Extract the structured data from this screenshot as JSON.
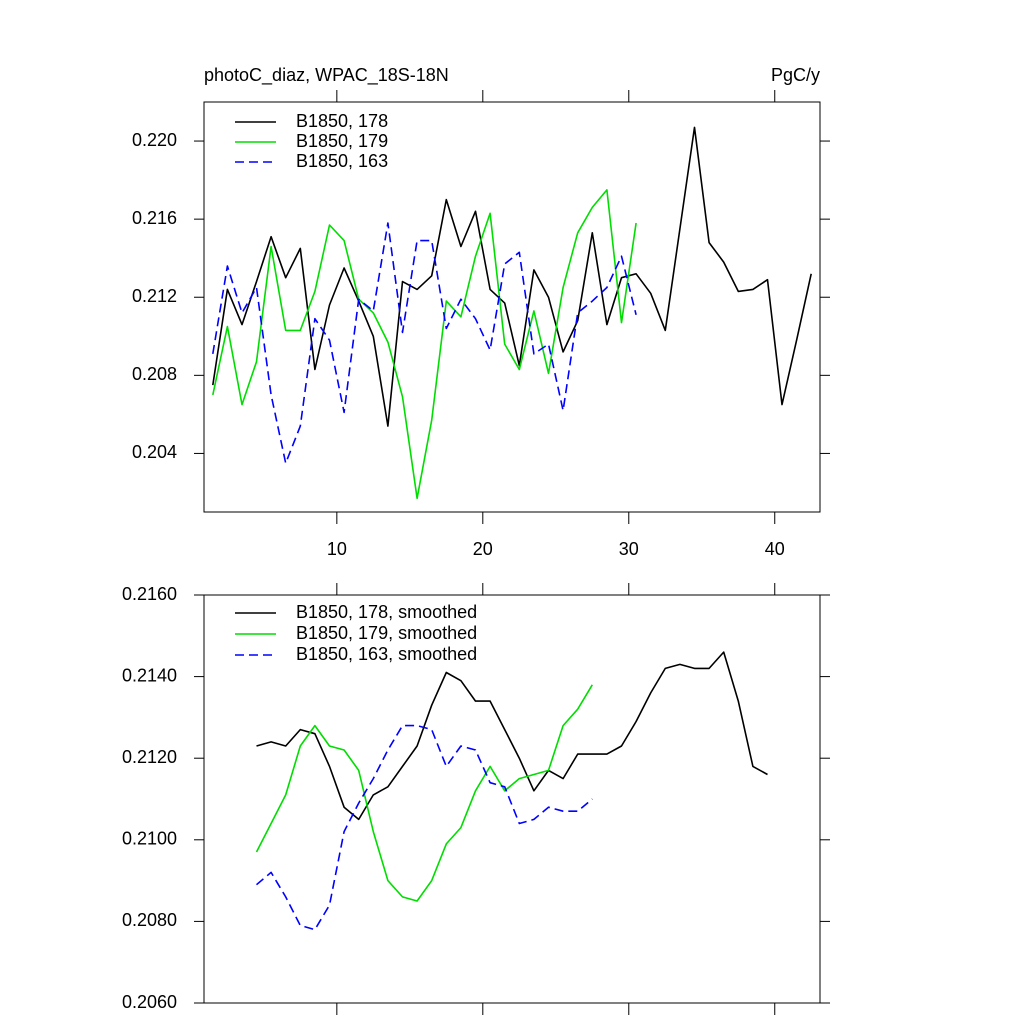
{
  "chart_data": [
    {
      "type": "line",
      "title": "photoC_diaz, WPAC_18S-18N",
      "units": "PgC/y",
      "x": [
        1.5,
        2.5,
        3.5,
        4.5,
        5.5,
        6.5,
        7.5,
        8.5,
        9.5,
        10.5,
        11.5,
        12.5,
        13.5,
        14.5,
        15.5,
        16.5,
        17.5,
        18.5,
        19.5,
        20.5,
        21.5,
        22.5,
        23.5,
        24.5,
        25.5,
        26.5,
        27.5,
        28.5,
        29.5,
        30.5,
        31.5,
        32.5,
        33.5,
        34.5,
        35.5,
        36.5,
        37.5,
        38.5,
        39.5,
        40.5,
        41.5,
        42.5
      ],
      "xlim": [
        0.9,
        43.1
      ],
      "xticks": [
        10,
        20,
        30,
        40
      ],
      "xtick_labels": true,
      "ylim": [
        0.201,
        0.222
      ],
      "yticks": [
        {
          "value": 0.204,
          "label": "0.204"
        },
        {
          "value": 0.208,
          "label": "0.208"
        },
        {
          "value": 0.212,
          "label": "0.212"
        },
        {
          "value": 0.216,
          "label": "0.216"
        },
        {
          "value": 0.22,
          "label": "0.220"
        }
      ],
      "series": [
        {
          "name": "B1850, 178",
          "color": "#000000",
          "dash": false,
          "values": [
            0.2075,
            0.2124,
            0.2106,
            0.2128,
            0.2151,
            0.213,
            0.2145,
            0.2083,
            0.2116,
            0.2135,
            0.2118,
            0.21,
            0.2054,
            0.2128,
            0.2124,
            0.2131,
            0.217,
            0.2146,
            0.2164,
            0.2124,
            0.2117,
            0.2085,
            0.2134,
            0.212,
            0.2092,
            0.2108,
            0.2153,
            0.2106,
            0.213,
            0.2132,
            0.2122,
            0.2103,
            0.2155,
            0.2207,
            0.2148,
            0.2138,
            0.2123,
            0.2124,
            0.2129,
            0.2065,
            0.2098,
            0.2132
          ]
        },
        {
          "name": "B1850, 179",
          "color": "#00dd00",
          "dash": false,
          "values": [
            0.207,
            0.2105,
            0.2065,
            0.2087,
            0.2146,
            0.2103,
            0.2103,
            0.2123,
            0.2157,
            0.2149,
            0.2119,
            0.2112,
            0.2097,
            0.2069,
            0.2017,
            0.2057,
            0.2118,
            0.211,
            0.2141,
            0.2163,
            0.2096,
            0.2083,
            0.2113,
            0.2081,
            0.2125,
            0.2153,
            0.2166,
            0.2175,
            0.2107,
            0.2158,
            null,
            null,
            null,
            null,
            null,
            null,
            null,
            null,
            null,
            null,
            null,
            null
          ]
        },
        {
          "name": "B1850, 163",
          "color": "#0000ff",
          "dash": true,
          "values": [
            0.2091,
            0.2136,
            0.2112,
            0.2125,
            0.207,
            0.2035,
            0.2054,
            0.2109,
            0.2098,
            0.2061,
            0.2119,
            0.2113,
            0.2158,
            0.2102,
            0.2149,
            0.2149,
            0.2104,
            0.2119,
            0.2109,
            0.2093,
            0.2137,
            0.2143,
            0.2091,
            0.2096,
            0.2062,
            0.2112,
            0.2118,
            0.2125,
            0.2141,
            0.2111,
            null,
            null,
            null,
            null,
            null,
            null,
            null,
            null,
            null,
            null,
            null,
            null
          ]
        }
      ]
    },
    {
      "type": "line",
      "x": [
        4.5,
        5.5,
        6.5,
        7.5,
        8.5,
        9.5,
        10.5,
        11.5,
        12.5,
        13.5,
        14.5,
        15.5,
        16.5,
        17.5,
        18.5,
        19.5,
        20.5,
        21.5,
        22.5,
        23.5,
        24.5,
        25.5,
        26.5,
        27.5,
        28.5,
        29.5,
        30.5,
        31.5,
        32.5,
        33.5,
        34.5,
        35.5,
        36.5,
        37.5,
        38.5,
        39.5
      ],
      "xlim": [
        0.9,
        43.1
      ],
      "xticks": [
        10,
        20,
        30,
        40
      ],
      "xtick_labels": false,
      "ylim": [
        0.206,
        0.216
      ],
      "yticks": [
        {
          "value": 0.206,
          "label": "0.2060"
        },
        {
          "value": 0.208,
          "label": "0.2080"
        },
        {
          "value": 0.21,
          "label": "0.2100"
        },
        {
          "value": 0.212,
          "label": "0.2120"
        },
        {
          "value": 0.214,
          "label": "0.2140"
        },
        {
          "value": 0.216,
          "label": "0.2160"
        }
      ],
      "series": [
        {
          "name": "B1850, 178, smoothed",
          "color": "#000000",
          "dash": false,
          "values": [
            0.2123,
            0.2124,
            0.2123,
            0.2127,
            0.2126,
            0.2118,
            0.2108,
            0.2105,
            0.2111,
            0.2113,
            0.2118,
            0.2123,
            0.2133,
            0.2141,
            0.2139,
            0.2134,
            0.2134,
            0.2127,
            0.212,
            0.2112,
            0.2117,
            0.2115,
            0.2121,
            0.2121,
            0.2121,
            0.2123,
            0.2129,
            0.2136,
            0.2142,
            0.2143,
            0.2142,
            0.2142,
            0.2146,
            0.2134,
            0.2118,
            0.2116
          ]
        },
        {
          "name": "B1850, 179, smoothed",
          "color": "#00dd00",
          "dash": false,
          "values": [
            0.2097,
            0.2104,
            0.2111,
            0.2123,
            0.2128,
            0.2123,
            0.2122,
            0.2117,
            0.2102,
            0.209,
            0.2086,
            0.2085,
            0.209,
            0.2099,
            0.2103,
            0.2112,
            0.2118,
            0.2112,
            0.2115,
            0.2116,
            0.2117,
            0.2128,
            0.2132,
            0.2138,
            null,
            null,
            null,
            null,
            null,
            null,
            null,
            null,
            null,
            null,
            null,
            null
          ]
        },
        {
          "name": "B1850, 163, smoothed",
          "color": "#0000ff",
          "dash": true,
          "values": [
            0.2089,
            0.2092,
            0.2086,
            0.2079,
            0.2078,
            0.2084,
            0.2102,
            0.2109,
            0.2115,
            0.2122,
            0.2128,
            0.2128,
            0.2127,
            0.2118,
            0.2123,
            0.2122,
            0.2114,
            0.2113,
            0.2104,
            0.2105,
            0.2108,
            0.2107,
            0.2107,
            0.211,
            null,
            null,
            null,
            null,
            null,
            null,
            null,
            null,
            null,
            null,
            null,
            null
          ]
        }
      ]
    }
  ]
}
